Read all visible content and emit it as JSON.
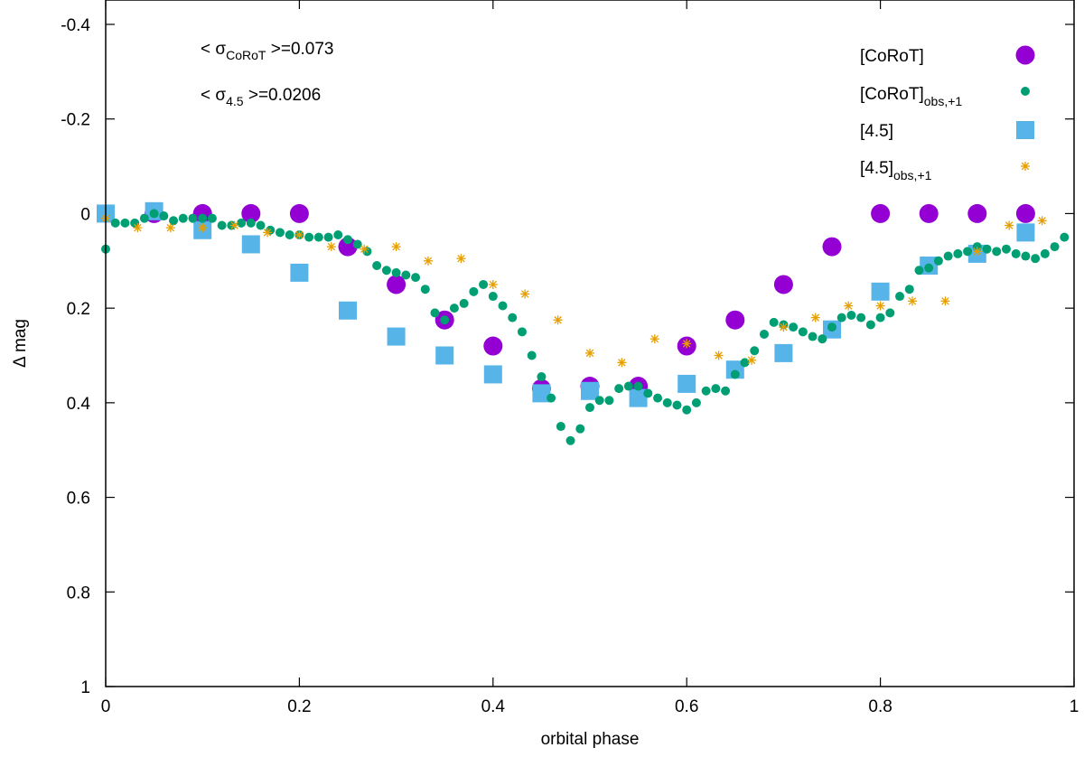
{
  "chart_data": {
    "type": "scatter",
    "xlabel": "orbital phase",
    "ylabel": "Δ mag",
    "xlim": [
      0,
      1
    ],
    "ylim": [
      -0.4,
      1
    ],
    "y_inverted": true,
    "x_ticks": [
      "0",
      "0.2",
      "0.4",
      "0.6",
      "0.8",
      "1"
    ],
    "x_tick_values": [
      0,
      0.2,
      0.4,
      0.6,
      0.8,
      1
    ],
    "y_ticks": [
      "-0.4",
      "-0.2",
      "0",
      "0.2",
      "0.4",
      "0.6",
      "0.8",
      "1"
    ],
    "y_tick_values": [
      -0.4,
      -0.2,
      0,
      0.2,
      0.4,
      0.6,
      0.8,
      1
    ],
    "annotations": [
      {
        "prefix": "< σ",
        "sub": "CoRoT",
        "suffix": " >=0.073"
      },
      {
        "prefix": "< σ",
        "sub": "4.5",
        "suffix": " >=0.0206"
      }
    ],
    "legend_position": "top-right",
    "series": [
      {
        "name": "[CoRoT]",
        "legend_main": "[CoRoT]",
        "legend_sub": "",
        "marker": "circle",
        "color": "#9400D3",
        "x": [
          0.05,
          0.1,
          0.15,
          0.2,
          0.25,
          0.3,
          0.35,
          0.4,
          0.45,
          0.5,
          0.55,
          0.6,
          0.65,
          0.7,
          0.75,
          0.8,
          0.85,
          0.9,
          0.95
        ],
        "y": [
          0,
          0,
          0,
          0,
          0.07,
          0.15,
          0.225,
          0.28,
          0.37,
          0.365,
          0.365,
          0.28,
          0.225,
          0.15,
          0.07,
          0,
          0,
          0,
          0
        ]
      },
      {
        "name": "[CoRoT]obs,+1",
        "legend_main": "[CoRoT]",
        "legend_sub": "obs,+1",
        "marker": "dot",
        "color": "#009E73",
        "x": [
          0.0,
          0.01,
          0.02,
          0.03,
          0.04,
          0.05,
          0.06,
          0.07,
          0.08,
          0.09,
          0.1,
          0.11,
          0.12,
          0.13,
          0.14,
          0.15,
          0.16,
          0.17,
          0.18,
          0.19,
          0.2,
          0.21,
          0.22,
          0.23,
          0.24,
          0.25,
          0.26,
          0.27,
          0.28,
          0.29,
          0.3,
          0.31,
          0.32,
          0.33,
          0.34,
          0.35,
          0.36,
          0.37,
          0.38,
          0.39,
          0.4,
          0.41,
          0.42,
          0.43,
          0.44,
          0.45,
          0.46,
          0.47,
          0.48,
          0.49,
          0.5,
          0.51,
          0.52,
          0.53,
          0.54,
          0.55,
          0.56,
          0.57,
          0.58,
          0.59,
          0.6,
          0.61,
          0.62,
          0.63,
          0.64,
          0.65,
          0.66,
          0.67,
          0.68,
          0.69,
          0.7,
          0.71,
          0.72,
          0.73,
          0.74,
          0.75,
          0.76,
          0.77,
          0.78,
          0.79,
          0.8,
          0.81,
          0.82,
          0.83,
          0.84,
          0.85,
          0.86,
          0.87,
          0.88,
          0.89,
          0.9,
          0.91,
          0.92,
          0.93,
          0.94,
          0.95,
          0.96,
          0.97,
          0.98,
          0.99
        ],
        "y": [
          0.075,
          0.02,
          0.02,
          0.02,
          0.01,
          0.0,
          0.005,
          0.015,
          0.01,
          0.01,
          0.01,
          0.01,
          0.025,
          0.025,
          0.02,
          0.02,
          0.025,
          0.035,
          0.04,
          0.045,
          0.045,
          0.05,
          0.05,
          0.05,
          0.045,
          0.055,
          0.065,
          0.08,
          0.11,
          0.12,
          0.125,
          0.13,
          0.135,
          0.16,
          0.21,
          0.225,
          0.2,
          0.19,
          0.165,
          0.15,
          0.175,
          0.195,
          0.22,
          0.25,
          0.3,
          0.345,
          0.39,
          0.45,
          0.48,
          0.455,
          0.41,
          0.395,
          0.395,
          0.37,
          0.365,
          0.365,
          0.38,
          0.39,
          0.4,
          0.405,
          0.415,
          0.4,
          0.375,
          0.37,
          0.375,
          0.34,
          0.315,
          0.29,
          0.255,
          0.23,
          0.235,
          0.24,
          0.25,
          0.26,
          0.265,
          0.24,
          0.22,
          0.215,
          0.22,
          0.235,
          0.22,
          0.21,
          0.175,
          0.16,
          0.12,
          0.115,
          0.1,
          0.09,
          0.085,
          0.08,
          0.07,
          0.075,
          0.08,
          0.075,
          0.085,
          0.09,
          0.095,
          0.085,
          0.07,
          0.05
        ]
      },
      {
        "name": "[4.5]",
        "legend_main": "[4.5]",
        "legend_sub": "",
        "marker": "square",
        "color": "#56B4E9",
        "x": [
          0.0,
          0.05,
          0.1,
          0.15,
          0.2,
          0.25,
          0.3,
          0.35,
          0.4,
          0.45,
          0.5,
          0.55,
          0.6,
          0.65,
          0.7,
          0.75,
          0.8,
          0.85,
          0.9,
          0.95
        ],
        "y": [
          0,
          -0.005,
          0.035,
          0.065,
          0.125,
          0.205,
          0.26,
          0.3,
          0.34,
          0.38,
          0.375,
          0.39,
          0.36,
          0.33,
          0.295,
          0.245,
          0.165,
          0.11,
          0.085,
          0.04
        ]
      },
      {
        "name": "[4.5]obs,+1",
        "legend_main": "[4.5]",
        "legend_sub": "obs,+1",
        "marker": "asterisk",
        "color": "#E69F00",
        "x": [
          0.0,
          0.033,
          0.067,
          0.1,
          0.133,
          0.167,
          0.2,
          0.233,
          0.267,
          0.3,
          0.333,
          0.367,
          0.4,
          0.433,
          0.467,
          0.5,
          0.533,
          0.567,
          0.6,
          0.633,
          0.667,
          0.7,
          0.733,
          0.767,
          0.8,
          0.833,
          0.867,
          0.9,
          0.933,
          0.967
        ],
        "y": [
          0.01,
          0.03,
          0.03,
          0.03,
          0.025,
          0.04,
          0.045,
          0.07,
          0.075,
          0.07,
          0.1,
          0.095,
          0.15,
          0.17,
          0.225,
          0.295,
          0.315,
          0.265,
          0.275,
          0.3,
          0.31,
          0.24,
          0.22,
          0.195,
          0.195,
          0.185,
          0.185,
          0.08,
          0.025,
          0.015
        ]
      }
    ]
  }
}
